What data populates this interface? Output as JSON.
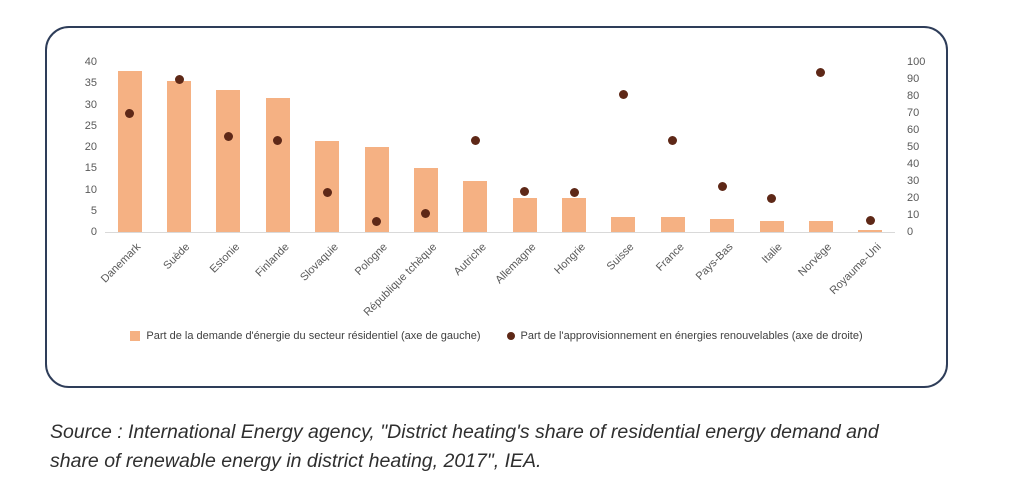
{
  "chart_data": {
    "type": "bar",
    "categories": [
      "Danemark",
      "Suède",
      "Estonie",
      "Finlande",
      "Slovaquie",
      "Pologne",
      "République tchèque",
      "Autriche",
      "Allemagne",
      "Hongrie",
      "Suisse",
      "France",
      "Pays-Bas",
      "Italie",
      "Norvège",
      "Royaume-Uni"
    ],
    "series": [
      {
        "name": "Part de la demande d'énergie du secteur résidentiel (axe de gauche)",
        "type": "bar",
        "axis": "left",
        "values": [
          38,
          35.5,
          33.5,
          31.5,
          21.5,
          20,
          15,
          12,
          8,
          8,
          3.5,
          3.5,
          3,
          2.5,
          2.5,
          0.5
        ]
      },
      {
        "name": "Part de l'approvisionnement en énergies renouvelables (axe de droite)",
        "type": "point",
        "axis": "right",
        "values": [
          70,
          90,
          56,
          54,
          23,
          6,
          11,
          54,
          24,
          23,
          81,
          54,
          27,
          20,
          94,
          7
        ]
      }
    ],
    "left_axis": {
      "min": 0,
      "max": 40,
      "step": 5,
      "ticks": [
        0,
        5,
        10,
        15,
        20,
        25,
        30,
        35,
        40
      ]
    },
    "right_axis": {
      "min": 0,
      "max": 100,
      "step": 10,
      "ticks": [
        0,
        10,
        20,
        30,
        40,
        50,
        60,
        70,
        80,
        90,
        100
      ]
    },
    "grid": false,
    "legend_position": "bottom",
    "title": "",
    "xlabel": "",
    "ylabel": "",
    "colors": {
      "bar": "#f5b183",
      "dot": "#5e2817",
      "card_border": "#2e3d59",
      "axis_text": "#595959"
    }
  },
  "legend": {
    "bars_label": "Part de la demande d'énergie du secteur résidentiel (axe de gauche)",
    "dots_label": "Part de l'approvisionnement en énergies renouvelables (axe de droite)"
  },
  "source": {
    "lines": [
      "Source : International Energy agency, \"District heating's share of residential energy demand and",
      "share of renewable energy in district heating, 2017\", IEA."
    ]
  }
}
